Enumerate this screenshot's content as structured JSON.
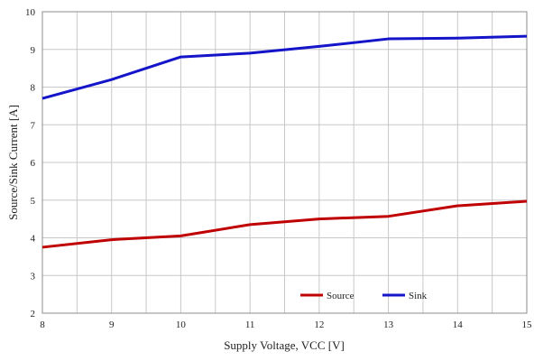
{
  "chart_data": {
    "type": "line",
    "title": "",
    "xlabel": "Supply Voltage, VCC [V]",
    "ylabel": "Source/Sink Current  [A]",
    "x": [
      8,
      9,
      10,
      11,
      12,
      13,
      14,
      15
    ],
    "xlim": [
      8,
      15
    ],
    "ylim": [
      2,
      10
    ],
    "x_ticks": [
      "8",
      "9",
      "10",
      "11",
      "12",
      "13",
      "14",
      "15"
    ],
    "y_ticks": [
      "2",
      "3",
      "4",
      "5",
      "6",
      "7",
      "8",
      "9",
      "10"
    ],
    "grid": true,
    "legend_position": "bottom-right",
    "series": [
      {
        "name": "Source",
        "color": "#c00000",
        "values": [
          3.75,
          3.95,
          4.05,
          4.35,
          4.5,
          4.57,
          4.85,
          4.97
        ]
      },
      {
        "name": "Sink",
        "color": "#1414c8",
        "values": [
          7.7,
          8.2,
          8.8,
          8.9,
          9.08,
          9.28,
          9.3,
          9.35
        ]
      }
    ]
  }
}
